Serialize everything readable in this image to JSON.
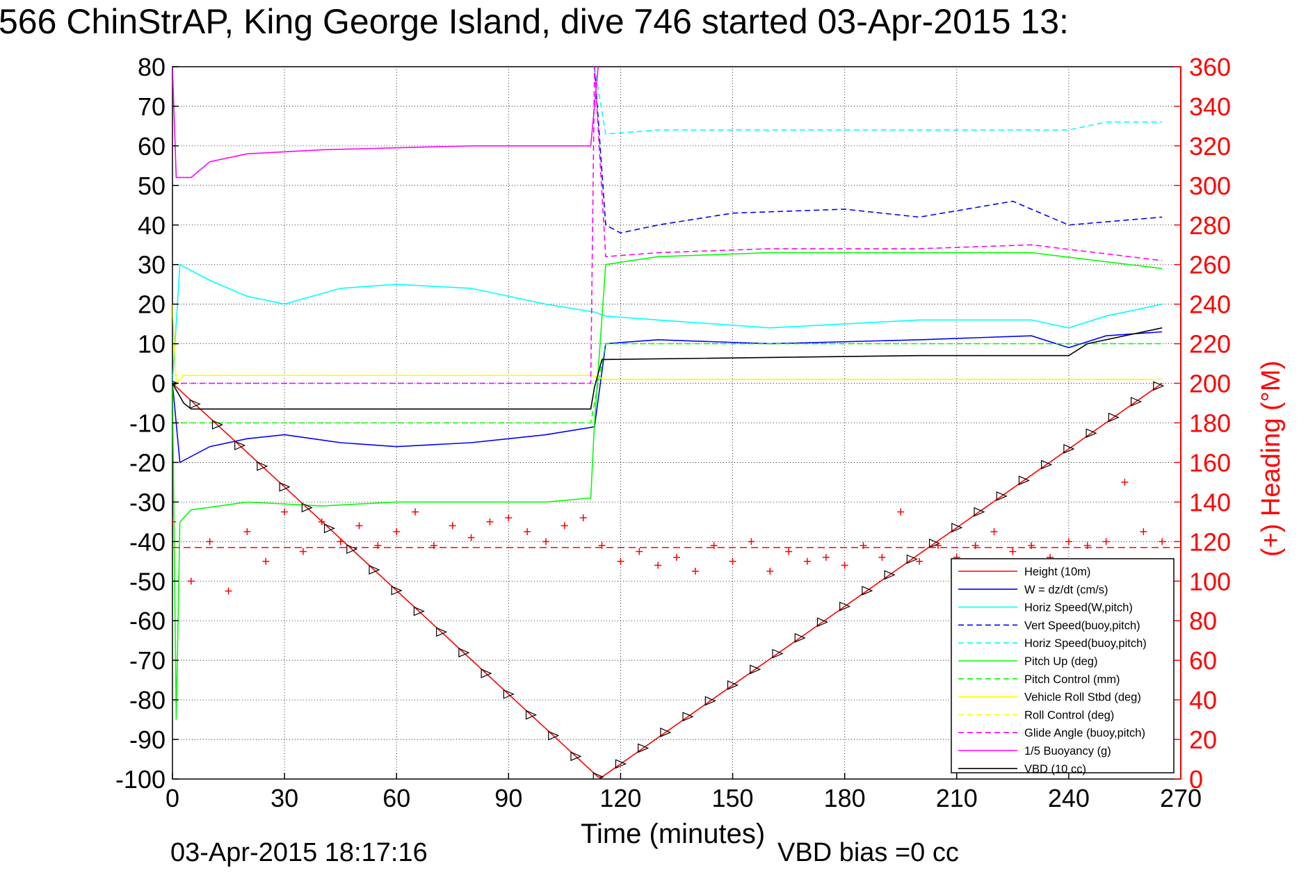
{
  "title": "566 ChinStrAP, King George Island, dive 746 started 03-Apr-2015 13:",
  "timestamp": "03-Apr-2015 18:17:16",
  "vbd_bias": "VBD bias =0 cc",
  "chart_data": {
    "type": "line",
    "xlabel": "Time (minutes)",
    "ylabel": "",
    "y2label": "(+) Heading (°M)",
    "xlim": [
      0,
      270
    ],
    "ylim": [
      -100,
      80
    ],
    "y2lim": [
      0,
      360
    ],
    "xticks": [
      "0",
      "30",
      "60",
      "90",
      "120",
      "150",
      "180",
      "210",
      "240",
      "270"
    ],
    "yticks": [
      "80",
      "70",
      "60",
      "50",
      "40",
      "30",
      "20",
      "10",
      "0",
      "-10",
      "-20",
      "-30",
      "-40",
      "-50",
      "-60",
      "-70",
      "-80",
      "-90",
      "-100"
    ],
    "y2ticks": [
      "360",
      "340",
      "320",
      "300",
      "280",
      "260",
      "240",
      "220",
      "200",
      "180",
      "160",
      "140",
      "120",
      "100",
      "80",
      "60",
      "40",
      "20",
      "0"
    ],
    "grid": true,
    "legend_position": "bottom-right",
    "colors": {
      "height": "#ff0000",
      "w": "#0000ff",
      "horiz_speed": "#00ffff",
      "pitch": "#00ff00",
      "roll": "#ffff00",
      "glide": "#ff00ff",
      "buoyancy": "#ff00ff",
      "vbd": "#000000",
      "heading": "#ff0000"
    },
    "series": [
      {
        "name": "Height (10m)",
        "style": "solid",
        "color": "#ff0000",
        "x": [
          0,
          114,
          115,
          265
        ],
        "y": [
          0,
          -99.5,
          -99.5,
          0
        ]
      },
      {
        "name": "W = dz/dt (cm/s)",
        "style": "solid",
        "color": "#0000ff",
        "x": [
          0,
          2,
          10,
          20,
          30,
          45,
          60,
          80,
          100,
          113,
          116,
          130,
          160,
          200,
          230,
          240,
          250,
          265
        ],
        "y": [
          0,
          -20,
          -16,
          -14,
          -13,
          -15,
          -16,
          -15,
          -13,
          -11,
          10,
          11,
          10,
          11,
          12,
          9,
          12,
          13
        ]
      },
      {
        "name": "Horiz Speed(W,pitch)",
        "style": "solid",
        "color": "#00ffff",
        "x": [
          0,
          2,
          10,
          20,
          30,
          45,
          60,
          80,
          100,
          113,
          116,
          130,
          160,
          200,
          230,
          240,
          250,
          265
        ],
        "y": [
          0,
          30,
          26,
          22,
          20,
          24,
          25,
          24,
          20,
          18,
          17,
          16,
          14,
          16,
          16,
          14,
          17,
          20
        ]
      },
      {
        "name": "Vert Speed(buoy,pitch)",
        "style": "dashed",
        "color": "#0000ff",
        "x": [
          113,
          116,
          120,
          130,
          150,
          180,
          200,
          225,
          240,
          265
        ],
        "y": [
          80,
          40,
          38,
          40,
          43,
          44,
          42,
          46,
          40,
          42
        ]
      },
      {
        "name": "Horiz Speed(buoy,pitch)",
        "style": "dashed",
        "color": "#00ffff",
        "x": [
          113,
          116,
          130,
          160,
          200,
          240,
          250,
          265
        ],
        "y": [
          80,
          63,
          64,
          64,
          64,
          64,
          66,
          66
        ]
      },
      {
        "name": "Pitch Up (deg)",
        "style": "solid",
        "color": "#00ff00",
        "x": [
          0,
          1,
          2,
          5,
          20,
          40,
          60,
          100,
          112,
          113,
          116,
          130,
          160,
          200,
          230,
          265
        ],
        "y": [
          0,
          -85,
          -35,
          -32,
          -30,
          -31,
          -30,
          -30,
          -29,
          -10,
          30,
          32,
          33,
          33,
          33,
          29
        ]
      },
      {
        "name": "Pitch Control (mm)",
        "style": "dashed",
        "color": "#00ff00",
        "x": [
          0,
          10,
          112,
          116,
          265
        ],
        "y": [
          -10,
          -10,
          -10,
          10,
          10
        ]
      },
      {
        "name": "Vehicle Roll Stbd (deg)",
        "style": "solid",
        "color": "#ffff00",
        "x": [
          0,
          1,
          3,
          112,
          116,
          265
        ],
        "y": [
          20,
          0,
          2,
          2,
          1,
          1
        ]
      },
      {
        "name": "Roll Control (deg)",
        "style": "dashed",
        "color": "#ffff00",
        "x": [
          0,
          112,
          116,
          265
        ],
        "y": [
          2,
          2,
          1,
          1
        ]
      },
      {
        "name": "Glide Angle (buoy,pitch)",
        "style": "dashed",
        "color": "#ff00ff",
        "x": [
          0,
          112,
          113,
          116,
          130,
          160,
          200,
          230,
          265
        ],
        "y": [
          0,
          0,
          80,
          32,
          33,
          34,
          34,
          35,
          31
        ]
      },
      {
        "name": "1/5 Buoyancy (g)",
        "style": "solid",
        "color": "#ff00ff",
        "x": [
          0,
          1,
          5,
          10,
          20,
          40,
          60,
          80,
          100,
          112,
          114
        ],
        "y": [
          80,
          52,
          52,
          56,
          58,
          59,
          59.5,
          60,
          60,
          60,
          80
        ]
      },
      {
        "name": "VBD (10 cc)",
        "style": "solid",
        "color": "#000000",
        "x": [
          0,
          3,
          5,
          112,
          113,
          115,
          200,
          240,
          245,
          260,
          265
        ],
        "y": [
          0,
          -5,
          -6.5,
          -6.5,
          -1,
          6,
          7,
          7,
          10,
          13,
          14
        ]
      }
    ],
    "heading": {
      "name": "Heading",
      "marker": "+",
      "color": "#ff0000",
      "axis": "right",
      "mean": 117,
      "x": [
        0,
        5,
        10,
        15,
        20,
        25,
        30,
        35,
        40,
        45,
        50,
        55,
        60,
        65,
        70,
        75,
        80,
        85,
        90,
        95,
        100,
        105,
        110,
        115,
        120,
        125,
        130,
        135,
        140,
        145,
        150,
        155,
        160,
        165,
        170,
        175,
        180,
        185,
        190,
        195,
        200,
        205,
        210,
        215,
        220,
        225,
        230,
        235,
        240,
        245,
        250,
        255,
        260,
        265
      ],
      "y": [
        130,
        100,
        120,
        95,
        125,
        110,
        135,
        115,
        130,
        120,
        128,
        118,
        125,
        135,
        118,
        128,
        122,
        130,
        132,
        125,
        120,
        128,
        132,
        118,
        110,
        115,
        108,
        112,
        105,
        118,
        110,
        120,
        105,
        115,
        110,
        112,
        108,
        118,
        112,
        135,
        110,
        118,
        112,
        118,
        125,
        115,
        118,
        112,
        120,
        118,
        120,
        150,
        125,
        120
      ]
    }
  }
}
